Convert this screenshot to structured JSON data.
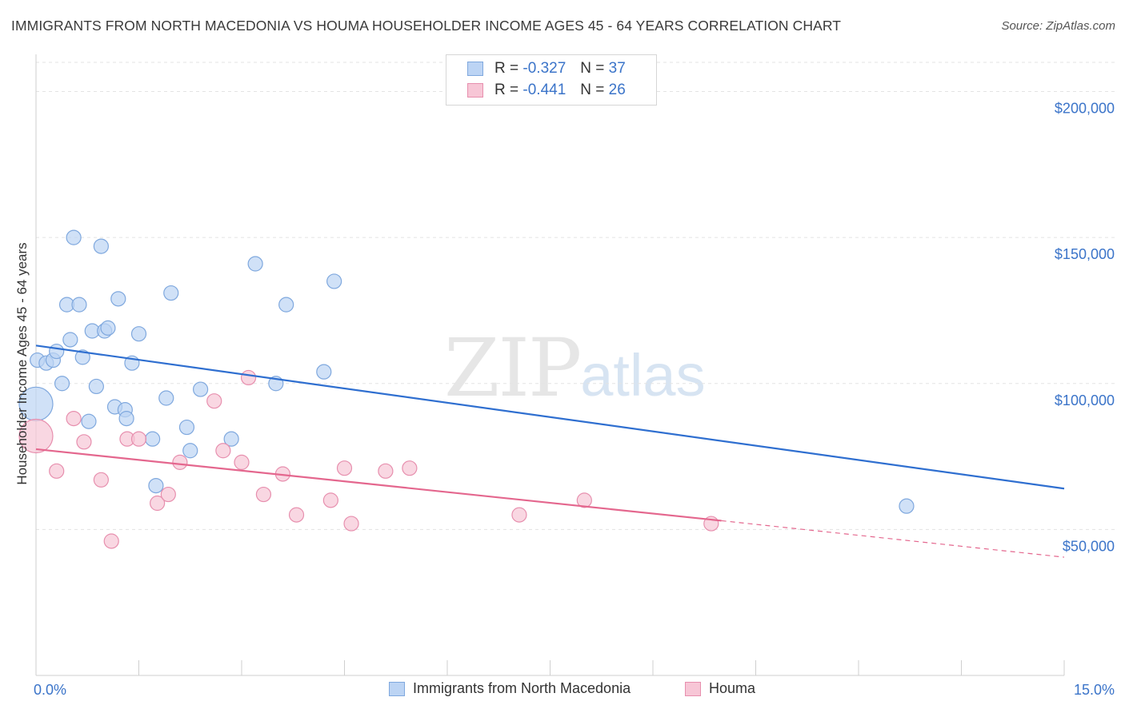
{
  "title": "IMMIGRANTS FROM NORTH MACEDONIA VS HOUMA HOUSEHOLDER INCOME AGES 45 - 64 YEARS CORRELATION CHART",
  "source": "Source: ZipAtlas.com",
  "watermark": {
    "zip": "ZIP",
    "atlas": "atlas"
  },
  "legend": {
    "r_label": "R =",
    "n_label": "N =",
    "items": [
      {
        "r": "-0.327",
        "n": "37"
      },
      {
        "r": "-0.441",
        "n": "26"
      }
    ]
  },
  "colors": {
    "blue_fill": "#bcd4f4",
    "blue_stroke": "#7fa8de",
    "blue_line": "#2f6fd0",
    "pink_fill": "#f7c6d6",
    "pink_stroke": "#e78fae",
    "pink_line": "#e4678e",
    "axis_label": "#3b74c9"
  },
  "chart_data": {
    "type": "scatter",
    "title": "IMMIGRANTS FROM NORTH MACEDONIA VS HOUMA HOUSEHOLDER INCOME AGES 45 - 64 YEARS CORRELATION CHART",
    "xlabel": "",
    "ylabel": "Householder Income Ages 45 - 64 years",
    "xlim": [
      0,
      15
    ],
    "ylim": [
      0,
      210000
    ],
    "x_tick_labels": [
      "0.0%",
      "15.0%"
    ],
    "y_ticks": [
      50000,
      100000,
      150000,
      200000
    ],
    "y_tick_labels": [
      "$50,000",
      "$100,000",
      "$150,000",
      "$200,000"
    ],
    "grid": true,
    "legend_position": "top-center",
    "series": [
      {
        "name": "Immigrants from North Macedonia",
        "color": "#7fa8de",
        "trend": {
          "x": [
            0,
            15
          ],
          "y": [
            113000,
            64000
          ]
        },
        "points": [
          {
            "x": 0.0,
            "y": 93000,
            "big": true
          },
          {
            "x": 0.02,
            "y": 108000
          },
          {
            "x": 0.15,
            "y": 107000
          },
          {
            "x": 0.25,
            "y": 108000
          },
          {
            "x": 0.3,
            "y": 111000
          },
          {
            "x": 0.38,
            "y": 100000
          },
          {
            "x": 0.45,
            "y": 127000
          },
          {
            "x": 0.5,
            "y": 115000
          },
          {
            "x": 0.55,
            "y": 150000
          },
          {
            "x": 0.63,
            "y": 127000
          },
          {
            "x": 0.68,
            "y": 109000
          },
          {
            "x": 0.77,
            "y": 87000
          },
          {
            "x": 0.82,
            "y": 118000
          },
          {
            "x": 0.88,
            "y": 99000
          },
          {
            "x": 0.95,
            "y": 147000
          },
          {
            "x": 1.0,
            "y": 118000
          },
          {
            "x": 1.05,
            "y": 119000
          },
          {
            "x": 1.15,
            "y": 92000
          },
          {
            "x": 1.2,
            "y": 129000
          },
          {
            "x": 1.3,
            "y": 91000
          },
          {
            "x": 1.32,
            "y": 88000
          },
          {
            "x": 1.4,
            "y": 107000
          },
          {
            "x": 1.5,
            "y": 117000
          },
          {
            "x": 1.7,
            "y": 81000
          },
          {
            "x": 1.75,
            "y": 65000
          },
          {
            "x": 1.9,
            "y": 95000
          },
          {
            "x": 1.97,
            "y": 131000
          },
          {
            "x": 2.2,
            "y": 85000
          },
          {
            "x": 2.25,
            "y": 77000
          },
          {
            "x": 2.4,
            "y": 98000
          },
          {
            "x": 2.85,
            "y": 81000
          },
          {
            "x": 3.2,
            "y": 141000
          },
          {
            "x": 3.5,
            "y": 100000
          },
          {
            "x": 3.65,
            "y": 127000
          },
          {
            "x": 4.2,
            "y": 104000
          },
          {
            "x": 4.35,
            "y": 135000
          },
          {
            "x": 12.7,
            "y": 58000
          }
        ]
      },
      {
        "name": "Houma",
        "color": "#e78fae",
        "trend": {
          "x": [
            0,
            10.0
          ],
          "y": [
            77500,
            53000
          ]
        },
        "trend_dashed": {
          "x": [
            10.0,
            15
          ],
          "y": [
            53000,
            40500
          ]
        },
        "points": [
          {
            "x": 0.0,
            "y": 82000,
            "big": true
          },
          {
            "x": 0.3,
            "y": 70000
          },
          {
            "x": 0.55,
            "y": 88000
          },
          {
            "x": 0.7,
            "y": 80000
          },
          {
            "x": 0.95,
            "y": 67000
          },
          {
            "x": 1.1,
            "y": 46000
          },
          {
            "x": 1.33,
            "y": 81000
          },
          {
            "x": 1.5,
            "y": 81000
          },
          {
            "x": 1.77,
            "y": 59000
          },
          {
            "x": 1.93,
            "y": 62000
          },
          {
            "x": 2.1,
            "y": 73000
          },
          {
            "x": 2.6,
            "y": 94000
          },
          {
            "x": 2.73,
            "y": 77000
          },
          {
            "x": 3.0,
            "y": 73000
          },
          {
            "x": 3.1,
            "y": 102000
          },
          {
            "x": 3.32,
            "y": 62000
          },
          {
            "x": 3.6,
            "y": 69000
          },
          {
            "x": 3.8,
            "y": 55000
          },
          {
            "x": 4.3,
            "y": 60000
          },
          {
            "x": 4.5,
            "y": 71000
          },
          {
            "x": 4.6,
            "y": 52000
          },
          {
            "x": 5.1,
            "y": 70000
          },
          {
            "x": 5.45,
            "y": 71000
          },
          {
            "x": 7.05,
            "y": 55000
          },
          {
            "x": 8.0,
            "y": 60000
          },
          {
            "x": 9.85,
            "y": 52000
          }
        ]
      }
    ]
  }
}
